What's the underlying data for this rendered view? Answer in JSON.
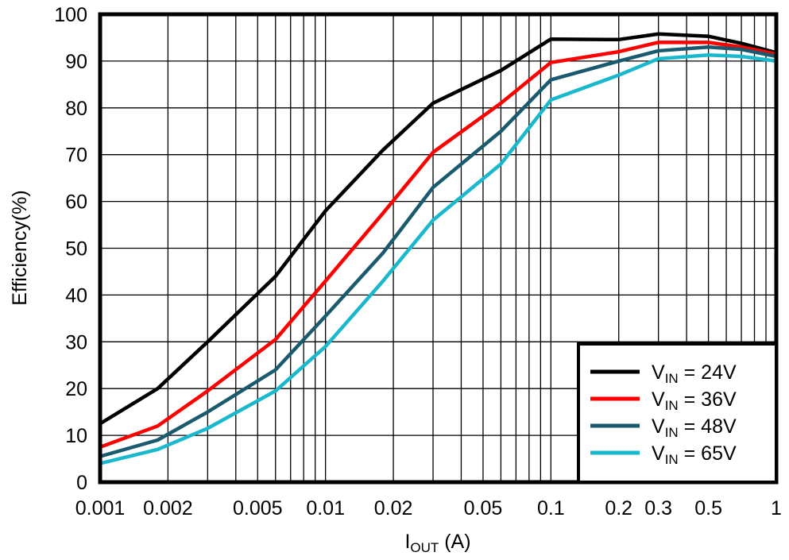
{
  "chart_data": {
    "type": "line",
    "title": "",
    "xlabel": "I",
    "xlabel_sub": "OUT",
    "xlabel_unit": " (A)",
    "ylabel": "Efficiency(%)",
    "x_scale": "log",
    "xlim": [
      0.001,
      1
    ],
    "ylim": [
      0,
      100
    ],
    "grid": true,
    "legend_placement": "bottom-right",
    "x_ticks": [
      {
        "value": 0.001,
        "label": "0.001"
      },
      {
        "value": 0.002,
        "label": "0.002"
      },
      {
        "value": 0.005,
        "label": "0.005"
      },
      {
        "value": 0.01,
        "label": "0.01"
      },
      {
        "value": 0.02,
        "label": "0.02"
      },
      {
        "value": 0.05,
        "label": "0.05"
      },
      {
        "value": 0.1,
        "label": "0.1"
      },
      {
        "value": 0.2,
        "label": "0.2"
      },
      {
        "value": 0.3,
        "label": "0.3"
      },
      {
        "value": 0.5,
        "label": "0.5"
      },
      {
        "value": 1,
        "label": "1"
      }
    ],
    "y_ticks": [
      0,
      10,
      20,
      30,
      40,
      50,
      60,
      70,
      80,
      90,
      100
    ],
    "x": [
      0.001,
      0.0018,
      0.003,
      0.006,
      0.01,
      0.018,
      0.03,
      0.06,
      0.1,
      0.2,
      0.3,
      0.5,
      0.7,
      1
    ],
    "series": [
      {
        "name_main": "V",
        "name_sub": "IN",
        "name_rest": " = 24V",
        "color": "#000000",
        "values": [
          12.5,
          20,
          30,
          44,
          58,
          71,
          81,
          88,
          94.7,
          94.6,
          95.8,
          95.3,
          93.8,
          91.8
        ]
      },
      {
        "name_main": "V",
        "name_sub": "IN",
        "name_rest": " = 36V",
        "color": "#ff0000",
        "values": [
          7.5,
          12,
          19.5,
          30.5,
          43,
          57.5,
          70.5,
          81,
          89.7,
          92,
          94,
          94,
          93,
          91.5
        ]
      },
      {
        "name_main": "V",
        "name_sub": "IN",
        "name_rest": " = 48V",
        "color": "#1a5a6e",
        "values": [
          5.5,
          9,
          15,
          24,
          35.5,
          49,
          63,
          75,
          86,
          90,
          92.2,
          93,
          92.5,
          91
        ]
      },
      {
        "name_main": "V",
        "name_sub": "IN",
        "name_rest": " = 65V",
        "color": "#1ab8cc",
        "values": [
          4,
          7,
          11.5,
          19.5,
          29,
          43,
          56,
          68,
          81.7,
          87,
          90.5,
          91.3,
          91,
          90
        ]
      }
    ]
  }
}
